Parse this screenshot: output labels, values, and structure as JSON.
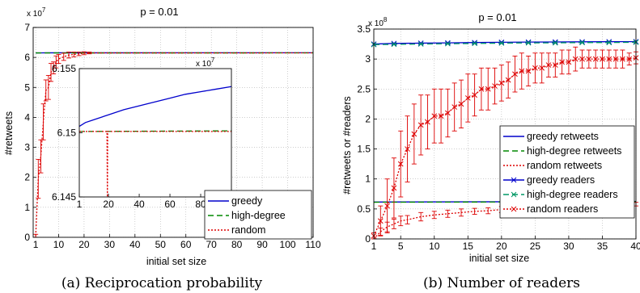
{
  "captions": [
    "(a) Reciprocation probability",
    "(b) Number of readers"
  ],
  "chart_data": [
    {
      "type": "line",
      "title": "p = 0.01",
      "xlabel": "initial set size",
      "ylabel": "#retweets",
      "y_multiplier": "x 10",
      "y_exponent": "7",
      "xlim": [
        0,
        110
      ],
      "ylim": [
        0,
        7
      ],
      "xticks": [
        "1",
        "10",
        "20",
        "30",
        "40",
        "50",
        "60",
        "70",
        "80",
        "90",
        "100",
        "110"
      ],
      "yticks": [
        "0",
        "1",
        "2",
        "3",
        "4",
        "5",
        "6",
        "7"
      ],
      "grid": true,
      "legend_position": "lower-right",
      "colors": {
        "greedy": "#0000cc",
        "high-degree": "#008800",
        "random": "#dd0000"
      },
      "series": [
        {
          "name": "greedy",
          "style": "solid",
          "x": [
            1,
            3,
            6,
            10,
            110
          ],
          "y": [
            6.15,
            6.152,
            6.153,
            6.154,
            6.155
          ]
        },
        {
          "name": "high-degree",
          "style": "dashed",
          "x": [
            1,
            110
          ],
          "y": [
            6.15,
            6.151
          ]
        },
        {
          "name": "random",
          "style": "dotted",
          "x": [
            1,
            2,
            3,
            4,
            5,
            6,
            7,
            8,
            9,
            10,
            12,
            14,
            16,
            18,
            20,
            22,
            110
          ],
          "y": [
            0.05,
            1.95,
            2.7,
            3.85,
            4.9,
            5.0,
            5.5,
            5.65,
            5.85,
            5.95,
            6.02,
            6.08,
            6.1,
            6.12,
            6.14,
            6.15,
            6.151
          ],
          "err": [
            0.05,
            0.65,
            0.55,
            0.6,
            0.35,
            0.4,
            0.3,
            0.2,
            0.2,
            0.15,
            0.12,
            0.1,
            0.08,
            0.06,
            0.05,
            0.03,
            0
          ]
        }
      ],
      "inset": {
        "y_multiplier": "x 10",
        "y_exponent": "7",
        "xlim": [
          1,
          100
        ],
        "ylim": [
          6.145,
          6.155
        ],
        "xticks": [
          "1",
          "20",
          "40",
          "60",
          "80",
          "100"
        ],
        "yticks": [
          "6.145",
          "6.15",
          "6.155"
        ],
        "series": [
          {
            "name": "greedy",
            "x": [
              1,
              5,
              10,
              20,
              30,
              40,
              50,
              60,
              70,
              80,
              90,
              100
            ],
            "y": [
              6.1505,
              6.1508,
              6.151,
              6.1514,
              6.1518,
              6.1521,
              6.1524,
              6.1527,
              6.153,
              6.1532,
              6.1534,
              6.1536
            ]
          },
          {
            "name": "high-degree",
            "x": [
              1,
              100
            ],
            "y": [
              6.1501,
              6.15015
            ]
          },
          {
            "name": "random",
            "x": [
              1,
              19,
              19.3,
              19.5,
              100
            ],
            "y": [
              6.1501,
              6.1501,
              6.145,
              6.1501,
              6.1501
            ]
          }
        ]
      }
    },
    {
      "type": "line",
      "title": "p = 0.01",
      "xlabel": "initial set size",
      "ylabel": "#retweets or #readers",
      "y_multiplier": "x 10",
      "y_exponent": "8",
      "xlim": [
        1,
        40
      ],
      "ylim": [
        0,
        3.5
      ],
      "xticks": [
        "1",
        "5",
        "10",
        "15",
        "20",
        "25",
        "30",
        "35",
        "40"
      ],
      "yticks": [
        "0",
        "0.5",
        "1",
        "1.5",
        "2",
        "2.5",
        "3",
        "3.5"
      ],
      "grid": true,
      "legend_position": "right",
      "colors": {
        "greedy": "#0000cc",
        "high-degree": "#008800",
        "random": "#dd0000",
        "high-degree readers": "#009966"
      },
      "series": [
        {
          "name": "greedy retweets",
          "style": "solid",
          "x": [
            1,
            40
          ],
          "y": [
            0.615,
            0.625
          ]
        },
        {
          "name": "high-degree retweets",
          "style": "dashed",
          "x": [
            1,
            40
          ],
          "y": [
            0.612,
            0.62
          ]
        },
        {
          "name": "random retweets",
          "style": "dotted",
          "x": [
            1,
            2,
            3,
            4,
            5,
            6,
            8,
            10,
            12,
            14,
            16,
            18,
            20,
            22,
            24,
            26,
            28,
            30,
            32,
            34,
            36,
            38,
            40
          ],
          "y": [
            0.0,
            0.12,
            0.2,
            0.25,
            0.3,
            0.32,
            0.37,
            0.4,
            0.42,
            0.44,
            0.46,
            0.47,
            0.49,
            0.5,
            0.52,
            0.53,
            0.54,
            0.55,
            0.55,
            0.56,
            0.57,
            0.57,
            0.58
          ],
          "err": [
            0,
            0.06,
            0.08,
            0.08,
            0.08,
            0.07,
            0.07,
            0.06,
            0.06,
            0.06,
            0.05,
            0.05,
            0.05,
            0.05,
            0.04,
            0.04,
            0.04,
            0.04,
            0.04,
            0.03,
            0.03,
            0.03,
            0.03
          ]
        },
        {
          "name": "greedy readers",
          "style": "solid-x",
          "x": [
            1,
            4,
            8,
            12,
            16,
            20,
            24,
            28,
            32,
            36,
            40
          ],
          "y": [
            3.25,
            3.26,
            3.265,
            3.27,
            3.275,
            3.28,
            3.283,
            3.285,
            3.287,
            3.289,
            3.29
          ]
        },
        {
          "name": "high-degree readers",
          "style": "dashed-x",
          "x": [
            1,
            4,
            8,
            12,
            16,
            20,
            24,
            28,
            32,
            36,
            40
          ],
          "y": [
            3.24,
            3.245,
            3.25,
            3.255,
            3.26,
            3.265,
            3.27,
            3.27,
            3.275,
            3.275,
            3.28
          ]
        },
        {
          "name": "random readers",
          "style": "dotted-x",
          "x": [
            1,
            2,
            3,
            4,
            5,
            6,
            7,
            8,
            9,
            10,
            11,
            12,
            13,
            14,
            15,
            16,
            17,
            18,
            19,
            20,
            21,
            22,
            23,
            24,
            25,
            26,
            27,
            28,
            29,
            30,
            31,
            32,
            33,
            34,
            35,
            36,
            37,
            38,
            39,
            40
          ],
          "y": [
            0.05,
            0.3,
            0.55,
            0.85,
            1.25,
            1.5,
            1.75,
            1.9,
            1.95,
            2.05,
            2.05,
            2.1,
            2.2,
            2.25,
            2.35,
            2.4,
            2.5,
            2.5,
            2.55,
            2.6,
            2.65,
            2.75,
            2.8,
            2.8,
            2.85,
            2.85,
            2.9,
            2.9,
            2.95,
            2.95,
            3.0,
            3.0,
            3.0,
            3.0,
            3.0,
            3.0,
            3.0,
            3.0,
            3.0,
            3.02
          ],
          "err": [
            0.05,
            0.25,
            0.45,
            0.5,
            0.55,
            0.55,
            0.5,
            0.5,
            0.45,
            0.45,
            0.45,
            0.4,
            0.4,
            0.4,
            0.4,
            0.35,
            0.35,
            0.35,
            0.3,
            0.3,
            0.3,
            0.3,
            0.3,
            0.25,
            0.25,
            0.25,
            0.2,
            0.2,
            0.2,
            0.2,
            0.2,
            0.15,
            0.15,
            0.15,
            0.15,
            0.15,
            0.15,
            0.15,
            0.1,
            0.1
          ]
        }
      ]
    }
  ]
}
